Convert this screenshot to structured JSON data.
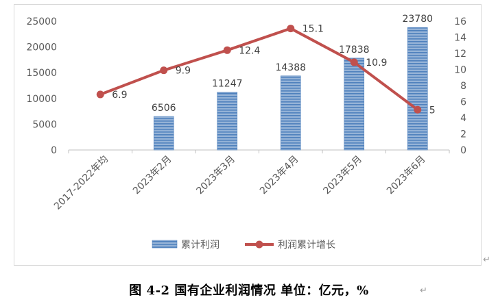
{
  "chart_data": {
    "type": "bar+line",
    "categories": [
      "2017-2022年均",
      "2023年2月",
      "2023年3月",
      "2023年4月",
      "2023年5月",
      "2023年6月"
    ],
    "series": [
      {
        "name": "累计利润",
        "type": "bar",
        "axis": "left",
        "values": [
          null,
          6506,
          11247,
          14388,
          17838,
          23780
        ],
        "color": "#4f81bd"
      },
      {
        "name": "利润累计增长",
        "type": "line",
        "axis": "right",
        "values": [
          6.9,
          9.9,
          12.4,
          15.1,
          10.9,
          5
        ],
        "color": "#c0504d"
      }
    ],
    "bar_labels": [
      "",
      "6506",
      "11247",
      "14388",
      "17838",
      "23780"
    ],
    "line_labels": [
      "6.9",
      "9.9",
      "12.4",
      "15.1",
      "10.9",
      "5"
    ],
    "y_left": {
      "min": 0,
      "max": 25000,
      "ticks": [
        "0",
        "5000",
        "10000",
        "15000",
        "20000",
        "25000"
      ]
    },
    "y_right": {
      "min": 0,
      "max": 16,
      "ticks": [
        "0",
        "2",
        "4",
        "6",
        "8",
        "10",
        "12",
        "14",
        "16"
      ]
    },
    "grid": false,
    "legend_position": "bottom",
    "legend": [
      {
        "label": "累计利润",
        "kind": "bar"
      },
      {
        "label": "利润累计增长",
        "kind": "line"
      }
    ]
  },
  "caption": "图 4-2  国有企业利润情况  单位：亿元，%",
  "return_mark": "↵"
}
